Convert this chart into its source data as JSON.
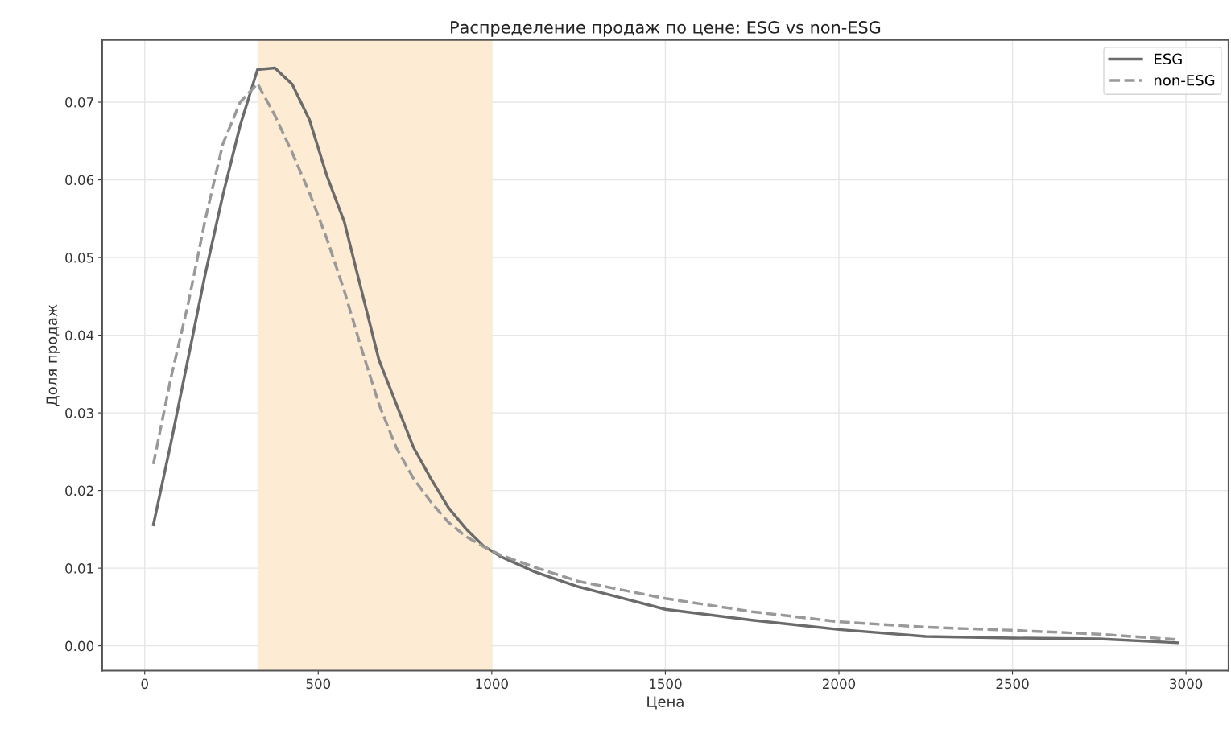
{
  "chart_data": {
    "type": "line",
    "title": "Распределение продаж по цене: ESG vs non-ESG",
    "xlabel": "Цена",
    "ylabel": "Доля продаж",
    "series": [
      {
        "name": "ESG",
        "color": "#6b6b6b",
        "line_style": "solid",
        "x": [
          25,
          75,
          125,
          175,
          225,
          275,
          325,
          375,
          425,
          475,
          525,
          575,
          625,
          675,
          725,
          775,
          825,
          875,
          925,
          975,
          1025,
          1125,
          1250,
          1500,
          1750,
          2000,
          2250,
          2500,
          2750,
          2975
        ],
        "values": [
          0.0156,
          0.026,
          0.037,
          0.048,
          0.058,
          0.067,
          0.0742,
          0.0744,
          0.0723,
          0.0677,
          0.0605,
          0.0546,
          0.0457,
          0.0368,
          0.0311,
          0.0255,
          0.0215,
          0.0178,
          0.0151,
          0.0129,
          0.0115,
          0.0095,
          0.0076,
          0.0047,
          0.0033,
          0.0021,
          0.0012,
          0.001,
          0.0009,
          0.0004
        ]
      },
      {
        "name": "non-ESG",
        "color": "#999999",
        "line_style": "dashed",
        "x": [
          25,
          75,
          125,
          175,
          225,
          275,
          325,
          375,
          425,
          475,
          525,
          575,
          625,
          675,
          725,
          775,
          825,
          875,
          925,
          975,
          1025,
          1125,
          1250,
          1500,
          1750,
          2000,
          2250,
          2500,
          2750,
          2975
        ],
        "values": [
          0.0234,
          0.0344,
          0.044,
          0.055,
          0.0646,
          0.07,
          0.0724,
          0.0683,
          0.0635,
          0.0583,
          0.0524,
          0.0457,
          0.0382,
          0.0311,
          0.0255,
          0.0215,
          0.0185,
          0.0159,
          0.0141,
          0.0128,
          0.0117,
          0.0101,
          0.0083,
          0.0061,
          0.0044,
          0.0031,
          0.0024,
          0.002,
          0.0015,
          0.0008
        ]
      }
    ],
    "bands": [
      {
        "axis": "x",
        "from": 325,
        "to": 1000,
        "color": "#fdebd3"
      }
    ],
    "xlim": [
      -122.5,
      3122.5
    ],
    "xticks": [
      0,
      500,
      1000,
      1500,
      2000,
      2500,
      3000
    ],
    "ylim": [
      -0.0032,
      0.078
    ],
    "yticks": [
      {
        "value": 0,
        "label": "0.00"
      },
      {
        "value": 0.01,
        "label": "0.01"
      },
      {
        "value": 0.02,
        "label": "0.02"
      },
      {
        "value": 0.03,
        "label": "0.03"
      },
      {
        "value": 0.04,
        "label": "0.04"
      },
      {
        "value": 0.05,
        "label": "0.05"
      },
      {
        "value": 0.06,
        "label": "0.06"
      },
      {
        "value": 0.07,
        "label": "0.07"
      }
    ],
    "grid": true,
    "legend": "top right"
  }
}
